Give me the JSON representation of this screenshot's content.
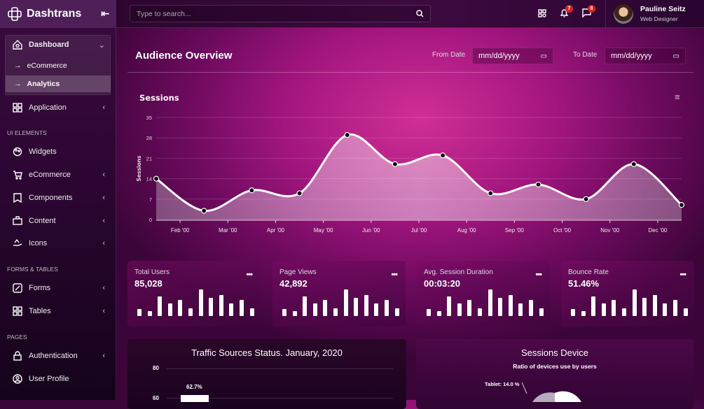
{
  "brand": {
    "name": "Dashtrans"
  },
  "sidebar": {
    "dashboard": "Dashboard",
    "sub": [
      "eCommerce",
      "Analytics"
    ],
    "application": "Application",
    "sections": [
      "UI ELEMENTS",
      "FORMS & TABLES",
      "PAGES"
    ],
    "ui": [
      "Widgets",
      "eCommerce",
      "Components",
      "Content",
      "Icons"
    ],
    "forms": [
      "Forms",
      "Tables"
    ],
    "pages": [
      "Authentication",
      "User Profile"
    ]
  },
  "header": {
    "search_placeholder": "Type to search...",
    "notifications": "7",
    "messages": "8",
    "user_name": "Pauline Seitz",
    "user_role": "Web Designer"
  },
  "page": {
    "title": "Audience Overview",
    "from_label": "From Date",
    "to_label": "To Date",
    "date_placeholder": "mm/dd/yyyy"
  },
  "chart_data": [
    {
      "type": "area",
      "title": "Sessions",
      "ylabel": "Sessions",
      "ylim": [
        0,
        35
      ],
      "yticks": [
        0,
        7,
        14,
        21,
        28,
        35
      ],
      "xticks": [
        "Feb '00",
        "Mar '00",
        "Apr '00",
        "May '00",
        "Jun '00",
        "Jul '00",
        "Aug '00",
        "Sep '00",
        "Oct '00",
        "Nov '00",
        "Dec '00"
      ],
      "values": [
        14,
        3,
        10,
        9,
        29,
        19,
        22,
        9,
        12,
        7,
        19,
        5
      ]
    },
    {
      "type": "bar",
      "title": "Traffic Sources Status. January, 2020",
      "yticks": [
        80,
        60
      ],
      "data_labels": [
        "62.7%"
      ]
    },
    {
      "type": "pie",
      "title": "Sessions Device",
      "subtitle": "Ratio of devices use by users",
      "labels": [
        "Tablet: 14.0 %"
      ]
    }
  ],
  "stats": [
    {
      "label": "Total Users",
      "value": "85,028"
    },
    {
      "label": "Page Views",
      "value": "42,892"
    },
    {
      "label": "Avg. Session Duration",
      "value": "00:03:20"
    },
    {
      "label": "Bounce Rate",
      "value": "51.46%"
    }
  ],
  "spark_values": [
    10,
    7,
    28,
    18,
    23,
    11,
    38,
    26,
    30,
    18,
    23,
    11
  ]
}
